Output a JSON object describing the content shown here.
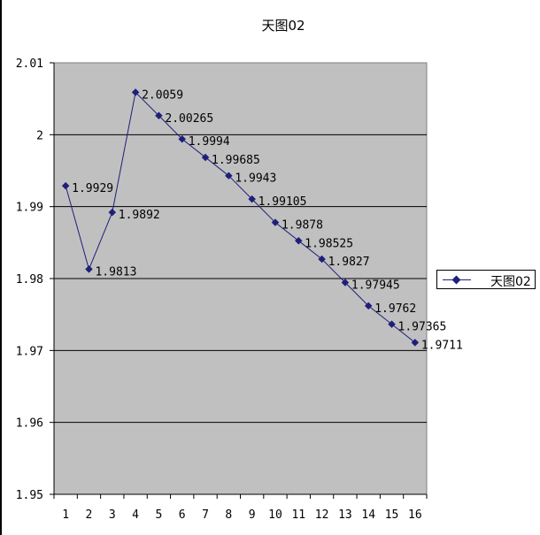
{
  "chart_data": {
    "type": "line",
    "title": "天图02",
    "xlabel": "",
    "ylabel": "",
    "categories": [
      "1",
      "2",
      "3",
      "4",
      "5",
      "6",
      "7",
      "8",
      "9",
      "10",
      "11",
      "12",
      "13",
      "14",
      "15",
      "16"
    ],
    "series": [
      {
        "name": "天图02",
        "values": [
          1.9929,
          1.9813,
          1.9892,
          2.0059,
          2.00265,
          1.9994,
          1.99685,
          1.9943,
          1.99105,
          1.9878,
          1.98525,
          1.9827,
          1.97945,
          1.9762,
          1.97365,
          1.9711
        ],
        "labels": [
          "1.9929",
          "1.9813",
          "1.9892",
          "2.0059",
          "2.00265",
          "1.9994",
          "1.99685",
          "1.9943",
          "1.99105",
          "1.9878",
          "1.98525",
          "1.9827",
          "1.97945",
          "1.9762",
          "1.97365",
          "1.9711"
        ]
      }
    ],
    "ylim": [
      1.95,
      2.01
    ],
    "yticks": [
      "1.95",
      "1.96",
      "1.97",
      "1.98",
      "1.99",
      "2",
      "2.01"
    ],
    "grid": true,
    "legend": "right",
    "colors": {
      "plot_background": "#c0c0c0",
      "line": "#1f1f7a",
      "grid": "#000000"
    }
  }
}
